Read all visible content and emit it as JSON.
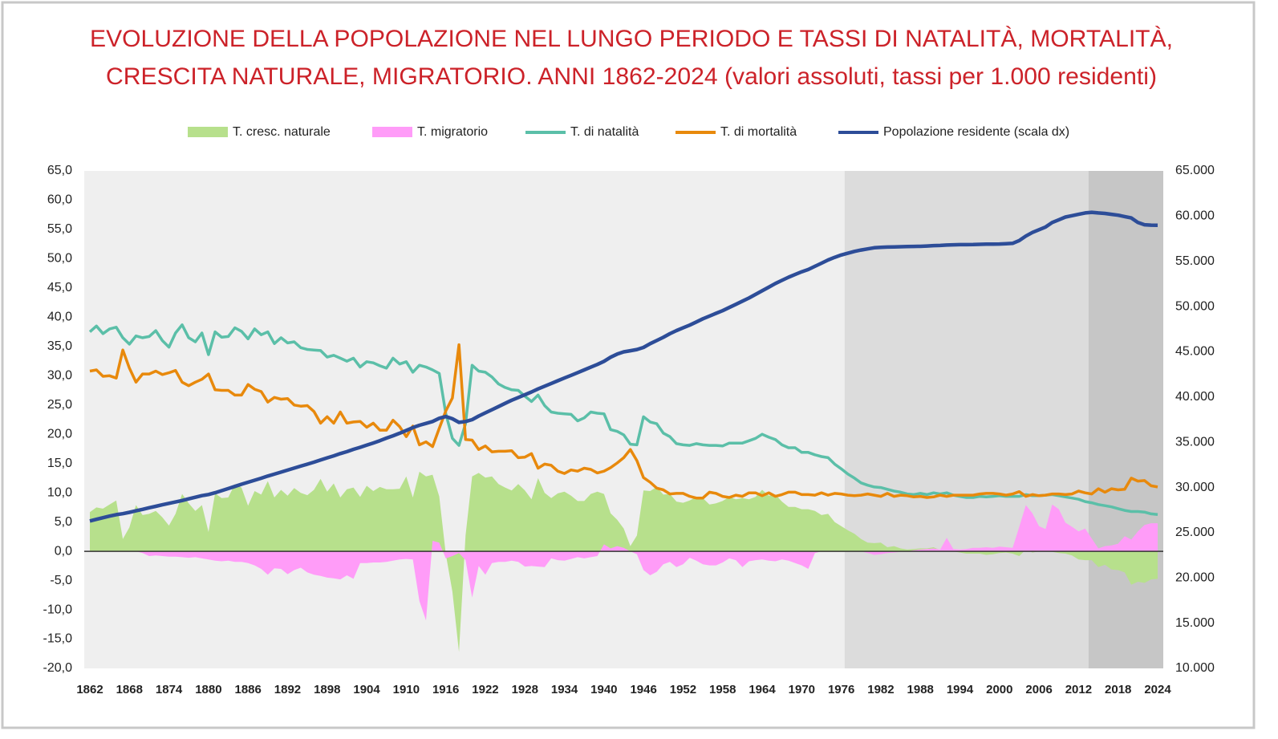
{
  "chart_data": {
    "type": "combo",
    "title": [
      "EVOLUZIONE DELLA POPOLAZIONE NEL LUNGO PERIODO E TASSI DI NATALITÀ, MORTALITÀ,",
      "CRESCITA NATURALE, MIGRATORIO. ANNI 1862-2024 (valori assoluti, tassi per 1.000 residenti)"
    ],
    "categories": [
      "1862",
      null,
      null,
      null,
      null,
      null,
      "1868",
      null,
      null,
      null,
      null,
      null,
      "1874",
      null,
      null,
      null,
      null,
      null,
      "1880",
      null,
      null,
      null,
      null,
      null,
      "1886",
      null,
      null,
      null,
      null,
      null,
      "1892",
      null,
      null,
      null,
      null,
      null,
      "1898",
      null,
      null,
      null,
      null,
      null,
      "1904",
      null,
      null,
      null,
      null,
      null,
      "1910",
      null,
      null,
      null,
      null,
      null,
      "1916",
      null,
      null,
      null,
      null,
      null,
      "1922",
      null,
      null,
      null,
      null,
      null,
      "1928",
      null,
      null,
      null,
      null,
      null,
      "1934",
      null,
      null,
      null,
      null,
      null,
      "1940",
      null,
      null,
      null,
      null,
      null,
      "1946",
      null,
      null,
      null,
      null,
      null,
      "1952",
      null,
      null,
      null,
      null,
      null,
      "1958",
      null,
      null,
      null,
      null,
      null,
      "1964",
      null,
      null,
      null,
      null,
      null,
      "1970",
      null,
      null,
      null,
      null,
      null,
      "1976",
      null,
      null,
      null,
      null,
      null,
      "1982",
      null,
      null,
      null,
      null,
      null,
      "1988",
      null,
      null,
      null,
      null,
      null,
      "1994",
      null,
      null,
      null,
      null,
      null,
      "2000",
      null,
      null,
      null,
      null,
      null,
      "2006",
      null,
      null,
      null,
      null,
      null,
      "2012",
      null,
      null,
      null,
      null,
      null,
      "2018",
      null,
      null,
      null,
      null,
      null,
      "2024"
    ],
    "series": [
      {
        "name": "T. cresc. naturale",
        "type": "area",
        "color": "#b7e08c",
        "values": [
          6.7,
          7.5,
          7.3,
          8.0,
          8.7,
          2.1,
          4.1,
          7.9,
          6.2,
          6.4,
          6.9,
          5.8,
          4.4,
          6.4,
          9.8,
          8.2,
          6.9,
          7.9,
          3.3,
          9.9,
          9.1,
          9.2,
          11.5,
          10.9,
          7.8,
          10.3,
          9.7,
          12.0,
          9.2,
          10.5,
          9.5,
          10.8,
          10.0,
          9.6,
          10.5,
          12.4,
          10.2,
          11.6,
          9.2,
          10.6,
          10.9,
          9.3,
          11.2,
          10.3,
          11.0,
          10.6,
          10.6,
          10.7,
          12.8,
          9.2,
          13.6,
          12.8,
          13.1,
          9.4,
          -0.5,
          -6.9,
          -17.2,
          2.7,
          12.8,
          13.4,
          12.6,
          12.8,
          11.5,
          10.9,
          10.4,
          11.5,
          10.4,
          8.9,
          12.5,
          10.0,
          9.1,
          9.9,
          10.2,
          9.5,
          8.6,
          8.6,
          9.8,
          10.2,
          9.8,
          6.5,
          5.4,
          3.9,
          0.9,
          2.7,
          10.4,
          10.3,
          11.0,
          9.7,
          9.8,
          8.5,
          8.3,
          8.7,
          9.3,
          9.1,
          8.0,
          8.2,
          8.6,
          9.3,
          8.9,
          9.1,
          8.9,
          9.3,
          10.5,
          9.5,
          9.7,
          8.5,
          7.6,
          7.6,
          7.2,
          7.2,
          6.9,
          6.2,
          6.4,
          5.0,
          4.3,
          3.6,
          3.0,
          2.1,
          1.5,
          1.4,
          1.5,
          0.7,
          0.9,
          0.5,
          0.3,
          0.4,
          0.5,
          0.5,
          0.7,
          0.2,
          0.6,
          0.0,
          -0.2,
          -0.4,
          -0.4,
          -0.4,
          -0.6,
          -0.5,
          -0.3,
          -0.2,
          -0.4,
          -0.8,
          0.3,
          -0.2,
          0.0,
          0.0,
          -0.1,
          -0.3,
          -0.4,
          -0.7,
          -1.4,
          -1.5,
          -1.5,
          -2.7,
          -2.3,
          -3.1,
          -3.2,
          -3.6,
          -5.7,
          -5.2,
          -5.4,
          -4.8,
          -4.7
        ]
      },
      {
        "name": "T. migratorio",
        "type": "area",
        "color": "#ff9cf8",
        "values": [
          0,
          0,
          0,
          0,
          0,
          0,
          0,
          0,
          -0.3,
          -0.8,
          -0.7,
          -0.8,
          -0.9,
          -0.9,
          -1.0,
          -1.1,
          -1.0,
          -1.2,
          -1.4,
          -1.6,
          -1.7,
          -1.6,
          -1.8,
          -1.8,
          -2.0,
          -2.4,
          -3.0,
          -4.0,
          -2.9,
          -3.0,
          -3.9,
          -3.2,
          -2.8,
          -3.6,
          -4.0,
          -4.2,
          -4.5,
          -4.6,
          -4.8,
          -4.1,
          -4.7,
          -2.0,
          -2.0,
          -1.9,
          -1.9,
          -1.8,
          -1.6,
          -1.4,
          -1.3,
          -1.4,
          -8.5,
          -11.8,
          1.8,
          1.5,
          -1.2,
          -0.8,
          -0.3,
          -1.5,
          -7.9,
          -2.5,
          -4.0,
          -2.0,
          -1.8,
          -1.8,
          -1.6,
          -1.8,
          -2.6,
          -2.5,
          -2.6,
          -2.7,
          -1.2,
          -1.5,
          -1.6,
          -1.3,
          -1.0,
          -1.2,
          -1.0,
          -0.8,
          1.2,
          0.5,
          0.9,
          0.6,
          0.0,
          -0.5,
          -3.2,
          -4.1,
          -3.5,
          -2.2,
          -1.8,
          -2.7,
          -2.2,
          -1.1,
          -1.6,
          -2.2,
          -2.4,
          -2.4,
          -1.9,
          -1.2,
          -1.5,
          -2.7,
          -1.7,
          -1.5,
          -1.4,
          -1.6,
          -1.7,
          -1.4,
          -1.6,
          -2.0,
          -2.4,
          -3.0,
          -0.3,
          0,
          0,
          0,
          0,
          0,
          0,
          0,
          -0.3,
          -0.6,
          -0.5,
          -0.3,
          -0.2,
          -0.1,
          0.0,
          0.2,
          0.3,
          0.4,
          0.5,
          0.3,
          2.3,
          0.4,
          0.3,
          0.4,
          0.6,
          0.6,
          0.7,
          0.6,
          0.8,
          0.7,
          0.6,
          4.2,
          7.9,
          6.5,
          4.3,
          3.8,
          8.0,
          7.2,
          4.9,
          4.2,
          3.4,
          3.9,
          2.2,
          0.5,
          0.9,
          1.0,
          1.3,
          2.6,
          2.0,
          3.4,
          4.5,
          4.8,
          4.8
        ]
      },
      {
        "name": "T. di natalità",
        "type": "line",
        "color": "#5bbfa8",
        "values": [
          37.5,
          38.5,
          37.2,
          38.0,
          38.3,
          36.5,
          35.4,
          36.8,
          36.5,
          36.7,
          37.7,
          36.0,
          34.9,
          37.3,
          38.7,
          36.5,
          35.8,
          37.3,
          33.6,
          37.5,
          36.6,
          36.7,
          38.2,
          37.6,
          36.3,
          38.0,
          37.0,
          37.5,
          35.5,
          36.5,
          35.6,
          35.8,
          34.8,
          34.5,
          34.4,
          34.3,
          33.2,
          33.5,
          33.0,
          32.5,
          33.0,
          31.5,
          32.4,
          32.2,
          31.7,
          31.3,
          33.0,
          32.0,
          32.4,
          30.6,
          31.8,
          31.5,
          31.0,
          30.4,
          23.5,
          19.3,
          18.1,
          21.8,
          31.8,
          30.8,
          30.6,
          29.8,
          28.6,
          28.0,
          27.6,
          27.5,
          26.5,
          25.6,
          26.7,
          24.9,
          23.8,
          23.6,
          23.5,
          23.4,
          22.3,
          22.8,
          23.8,
          23.6,
          23.5,
          20.8,
          20.5,
          19.9,
          18.3,
          18.2,
          23.0,
          22.1,
          21.8,
          20.2,
          19.6,
          18.4,
          18.2,
          18.1,
          18.4,
          18.2,
          18.1,
          18.1,
          18.0,
          18.5,
          18.5,
          18.5,
          18.9,
          19.3,
          20.0,
          19.5,
          19.1,
          18.2,
          17.7,
          17.7,
          16.9,
          16.9,
          16.5,
          16.2,
          16.0,
          14.9,
          14.1,
          13.2,
          12.5,
          11.7,
          11.3,
          11.0,
          10.9,
          10.6,
          10.3,
          10.1,
          9.8,
          9.7,
          9.9,
          9.7,
          10.0,
          9.8,
          10.0,
          9.6,
          9.4,
          9.2,
          9.2,
          9.4,
          9.3,
          9.4,
          9.5,
          9.4,
          9.4,
          9.4,
          9.7,
          9.5,
          9.5,
          9.6,
          9.7,
          9.5,
          9.3,
          9.1,
          8.9,
          8.5,
          8.3,
          8.0,
          7.8,
          7.6,
          7.3,
          7.0,
          6.8,
          6.8,
          6.7,
          6.4,
          6.3
        ]
      },
      {
        "name": "T. di mortalità",
        "type": "line",
        "color": "#e8890c",
        "values": [
          30.8,
          31.0,
          29.9,
          30.0,
          29.6,
          34.4,
          31.3,
          28.9,
          30.3,
          30.3,
          30.8,
          30.2,
          30.5,
          30.9,
          28.9,
          28.3,
          28.9,
          29.4,
          30.3,
          27.6,
          27.5,
          27.5,
          26.7,
          26.7,
          28.5,
          27.7,
          27.3,
          25.5,
          26.3,
          26.0,
          26.1,
          25.0,
          24.8,
          24.9,
          23.9,
          21.9,
          23.0,
          21.9,
          23.8,
          21.9,
          22.1,
          22.2,
          21.2,
          21.9,
          20.7,
          20.7,
          22.4,
          21.3,
          19.6,
          21.4,
          18.2,
          18.7,
          17.9,
          21.0,
          24.0,
          26.2,
          35.3,
          19.1,
          19.0,
          17.4,
          18.0,
          17.0,
          17.1,
          17.1,
          17.2,
          16.0,
          16.1,
          16.7,
          14.2,
          14.9,
          14.7,
          13.7,
          13.3,
          13.9,
          13.7,
          14.2,
          14.0,
          13.4,
          13.7,
          14.3,
          15.1,
          16.0,
          17.4,
          15.5,
          12.6,
          11.8,
          10.8,
          10.5,
          9.8,
          9.9,
          9.9,
          9.4,
          9.1,
          9.1,
          10.1,
          9.9,
          9.4,
          9.2,
          9.6,
          9.4,
          10.0,
          10.0,
          9.5,
          10.0,
          9.4,
          9.7,
          10.1,
          10.1,
          9.7,
          9.7,
          9.6,
          10.0,
          9.6,
          9.9,
          9.8,
          9.6,
          9.5,
          9.6,
          9.8,
          9.6,
          9.4,
          9.9,
          9.4,
          9.6,
          9.5,
          9.3,
          9.4,
          9.2,
          9.3,
          9.6,
          9.4,
          9.6,
          9.6,
          9.6,
          9.6,
          9.8,
          9.9,
          9.9,
          9.8,
          9.6,
          9.8,
          10.2,
          9.4,
          9.7,
          9.5,
          9.6,
          9.8,
          9.8,
          9.7,
          9.8,
          10.3,
          10.0,
          9.8,
          10.7,
          10.1,
          10.7,
          10.5,
          10.6,
          12.5,
          12.0,
          12.1,
          11.2,
          11.0
        ]
      },
      {
        "name": "Popolazione residente (scala dx)",
        "type": "line",
        "axis": "y2",
        "color": "#2d4d98",
        "values": [
          26300,
          26480,
          26660,
          26840,
          27000,
          27100,
          27250,
          27420,
          27580,
          27760,
          27920,
          28090,
          28250,
          28400,
          28560,
          28740,
          28920,
          29100,
          29220,
          29420,
          29650,
          29880,
          30120,
          30360,
          30580,
          30800,
          31020,
          31260,
          31480,
          31700,
          31920,
          32140,
          32360,
          32580,
          32800,
          33050,
          33280,
          33500,
          33750,
          33960,
          34220,
          34440,
          34680,
          34920,
          35180,
          35460,
          35720,
          36000,
          36300,
          36620,
          36880,
          37080,
          37300,
          37650,
          37850,
          37600,
          37200,
          37300,
          37500,
          37900,
          38250,
          38600,
          38950,
          39300,
          39650,
          39950,
          40260,
          40560,
          40900,
          41200,
          41500,
          41800,
          42100,
          42400,
          42700,
          43000,
          43300,
          43600,
          43950,
          44400,
          44750,
          45000,
          45120,
          45250,
          45480,
          45900,
          46250,
          46600,
          47000,
          47350,
          47650,
          47950,
          48300,
          48650,
          48950,
          49250,
          49550,
          49900,
          50250,
          50600,
          50950,
          51350,
          51750,
          52150,
          52550,
          52900,
          53250,
          53550,
          53850,
          54100,
          54450,
          54800,
          55150,
          55450,
          55700,
          55900,
          56100,
          56250,
          56380,
          56500,
          56550,
          56580,
          56600,
          56620,
          56640,
          56650,
          56660,
          56700,
          56740,
          56760,
          56800,
          56830,
          56850,
          56850,
          56860,
          56880,
          56900,
          56910,
          56920,
          56950,
          56990,
          57300,
          57800,
          58200,
          58500,
          58800,
          59300,
          59600,
          59900,
          60050,
          60200,
          60350,
          60420,
          60350,
          60300,
          60200,
          60100,
          59950,
          59800,
          59300,
          59050,
          59000,
          58990
        ]
      }
    ],
    "ylim": [
      -20,
      65
    ],
    "yticks": [
      {
        "value": -20,
        "label": "-20,0"
      },
      {
        "value": -15,
        "label": "-15,0"
      },
      {
        "value": -10,
        "label": "-10,0"
      },
      {
        "value": -5,
        "label": "-5,0"
      },
      {
        "value": 0,
        "label": "0,0"
      },
      {
        "value": 5,
        "label": "5,0"
      },
      {
        "value": 10,
        "label": "10,0"
      },
      {
        "value": 15,
        "label": "15,0"
      },
      {
        "value": 20,
        "label": "20,0"
      },
      {
        "value": 25,
        "label": "25,0"
      },
      {
        "value": 30,
        "label": "30,0"
      },
      {
        "value": 35,
        "label": "35,0"
      },
      {
        "value": 40,
        "label": "40,0"
      },
      {
        "value": 45,
        "label": "45,0"
      },
      {
        "value": 50,
        "label": "50,0"
      },
      {
        "value": 55,
        "label": "55,0"
      },
      {
        "value": 60,
        "label": "60,0"
      },
      {
        "value": 65,
        "label": "65,0"
      }
    ],
    "y2lim": [
      10000,
      65000
    ],
    "y2ticks": [
      {
        "value": 10000,
        "label": "10.000"
      },
      {
        "value": 15000,
        "label": "15.000"
      },
      {
        "value": 20000,
        "label": "20.000"
      },
      {
        "value": 25000,
        "label": "25.000"
      },
      {
        "value": 30000,
        "label": "30.000"
      },
      {
        "value": 35000,
        "label": "35.000"
      },
      {
        "value": 40000,
        "label": "40.000"
      },
      {
        "value": 45000,
        "label": "45.000"
      },
      {
        "value": 50000,
        "label": "50.000"
      },
      {
        "value": 55000,
        "label": "55.000"
      },
      {
        "value": 60000,
        "label": "60.000"
      },
      {
        "value": 65000,
        "label": "65.000"
      }
    ],
    "background_bands": [
      {
        "from": 1862,
        "to": 1976,
        "color": "#efefef"
      },
      {
        "from": 1976,
        "to": 2013,
        "color": "#dcdcdc"
      },
      {
        "from": 2013,
        "to": 2024,
        "color": "#c6c6c6"
      }
    ],
    "legend": "top",
    "title_color": "#cc2229"
  }
}
